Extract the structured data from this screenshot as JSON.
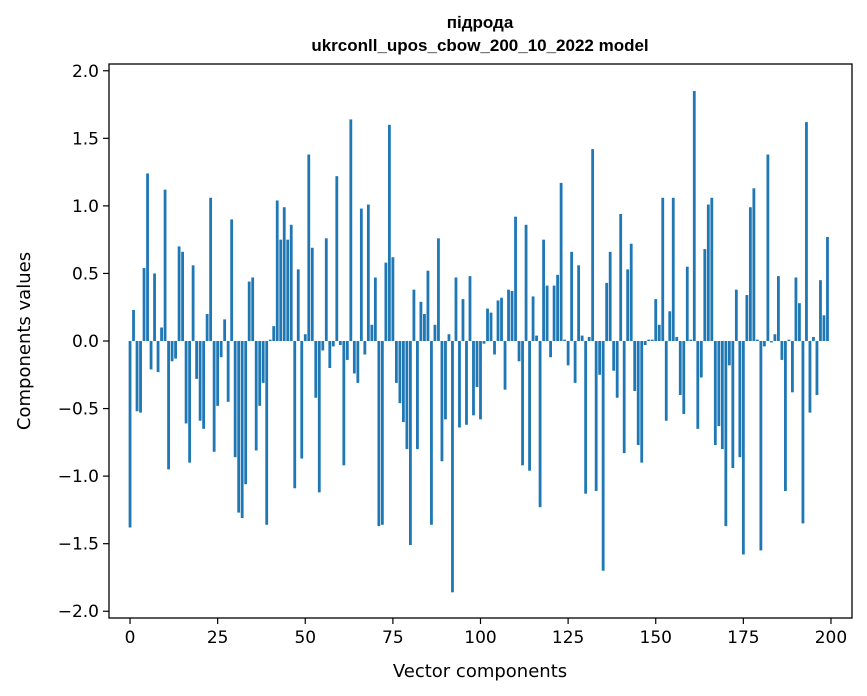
{
  "chart_data": {
    "type": "bar",
    "title": "підрода",
    "subtitle": "ukrconll_upos_cbow_200_10_2022 model",
    "xlabel": "Vector components",
    "ylabel": "Components values",
    "xlim": [
      -6,
      206
    ],
    "ylim": [
      -2.05,
      2.05
    ],
    "xticks": [
      0,
      25,
      50,
      75,
      100,
      125,
      150,
      175,
      200
    ],
    "yticks": [
      -2.0,
      -1.5,
      -1.0,
      -0.5,
      0.0,
      0.5,
      1.0,
      1.5,
      2.0
    ],
    "grid": false,
    "bar_color": "#1f77b4",
    "x": [
      0,
      1,
      2,
      3,
      4,
      5,
      6,
      7,
      8,
      9,
      10,
      11,
      12,
      13,
      14,
      15,
      16,
      17,
      18,
      19,
      20,
      21,
      22,
      23,
      24,
      25,
      26,
      27,
      28,
      29,
      30,
      31,
      32,
      33,
      34,
      35,
      36,
      37,
      38,
      39,
      40,
      41,
      42,
      43,
      44,
      45,
      46,
      47,
      48,
      49,
      50,
      51,
      52,
      53,
      54,
      55,
      56,
      57,
      58,
      59,
      60,
      61,
      62,
      63,
      64,
      65,
      66,
      67,
      68,
      69,
      70,
      71,
      72,
      73,
      74,
      75,
      76,
      77,
      78,
      79,
      80,
      81,
      82,
      83,
      84,
      85,
      86,
      87,
      88,
      89,
      90,
      91,
      92,
      93,
      94,
      95,
      96,
      97,
      98,
      99,
      100,
      101,
      102,
      103,
      104,
      105,
      106,
      107,
      108,
      109,
      110,
      111,
      112,
      113,
      114,
      115,
      116,
      117,
      118,
      119,
      120,
      121,
      122,
      123,
      124,
      125,
      126,
      127,
      128,
      129,
      130,
      131,
      132,
      133,
      134,
      135,
      136,
      137,
      138,
      139,
      140,
      141,
      142,
      143,
      144,
      145,
      146,
      147,
      148,
      149,
      150,
      151,
      152,
      153,
      154,
      155,
      156,
      157,
      158,
      159,
      160,
      161,
      162,
      163,
      164,
      165,
      166,
      167,
      168,
      169,
      170,
      171,
      172,
      173,
      174,
      175,
      176,
      177,
      178,
      179,
      180,
      181,
      182,
      183,
      184,
      185,
      186,
      187,
      188,
      189,
      190,
      191,
      192,
      193,
      194,
      195,
      196,
      197,
      198,
      199
    ],
    "values": [
      -1.38,
      0.23,
      -0.52,
      -0.53,
      0.54,
      1.24,
      -0.21,
      0.5,
      -0.23,
      0.1,
      1.12,
      -0.95,
      -0.15,
      -0.13,
      0.7,
      0.66,
      -0.61,
      -0.9,
      0.56,
      -0.28,
      -0.59,
      -0.65,
      0.2,
      1.06,
      -0.82,
      -0.48,
      -0.12,
      0.16,
      -0.45,
      0.9,
      -0.86,
      -1.27,
      -1.31,
      -1.06,
      0.44,
      0.47,
      -0.81,
      -0.48,
      -0.31,
      -1.36,
      0.01,
      0.11,
      1.04,
      0.75,
      0.99,
      0.75,
      0.86,
      -1.09,
      0.53,
      -0.87,
      0.05,
      1.38,
      0.69,
      -0.42,
      -1.12,
      -0.07,
      0.76,
      -0.2,
      -0.04,
      1.22,
      -0.03,
      -0.92,
      -0.14,
      1.64,
      -0.24,
      -0.31,
      0.98,
      -0.1,
      1.01,
      0.12,
      0.47,
      -1.37,
      -1.36,
      0.58,
      1.6,
      0.62,
      -0.31,
      -0.46,
      -0.6,
      -0.8,
      -1.51,
      0.38,
      -0.8,
      0.29,
      0.2,
      0.52,
      -1.36,
      0.12,
      0.76,
      -0.89,
      -0.58,
      0.05,
      -1.86,
      0.47,
      -0.64,
      0.31,
      -0.62,
      0.48,
      -0.55,
      -0.34,
      -0.58,
      -0.02,
      0.24,
      0.21,
      -0.1,
      0.3,
      0.32,
      -0.36,
      0.38,
      0.37,
      0.92,
      -0.15,
      -0.92,
      0.86,
      -0.96,
      0.33,
      0.04,
      -1.23,
      0.75,
      0.41,
      -0.12,
      0.41,
      0.49,
      1.17,
      0.01,
      -0.18,
      0.66,
      -0.31,
      0.56,
      0.04,
      -1.13,
      0.03,
      1.42,
      -1.11,
      -0.25,
      -1.7,
      0.43,
      0.66,
      -0.22,
      -0.42,
      0.94,
      -0.83,
      0.53,
      0.72,
      -0.37,
      -0.77,
      -0.9,
      -0.03,
      0.01,
      0.01,
      0.31,
      0.12,
      1.06,
      -0.59,
      0.22,
      1.06,
      0.03,
      -0.4,
      -0.54,
      0.55,
      0.01,
      1.85,
      -0.65,
      -0.27,
      0.68,
      1.01,
      1.06,
      -0.77,
      -0.63,
      -0.8,
      -1.37,
      -0.18,
      -0.94,
      0.38,
      -0.86,
      -1.58,
      0.34,
      0.99,
      1.13,
      0.01,
      -1.55,
      -0.04,
      1.38,
      -0.01,
      0.05,
      0.48,
      -0.14,
      -1.11,
      0.01,
      -0.38,
      0.47,
      0.28,
      -1.35,
      1.62,
      -0.53,
      0.03,
      -0.4,
      0.45,
      0.19,
      0.77
    ]
  }
}
